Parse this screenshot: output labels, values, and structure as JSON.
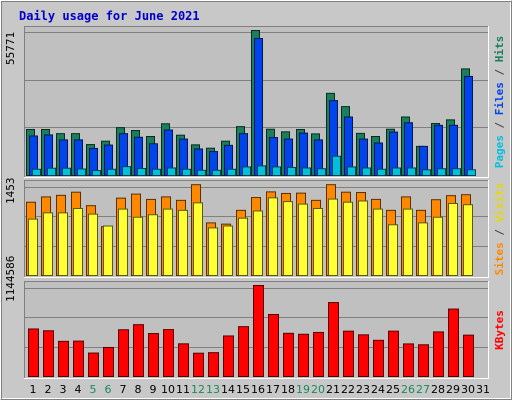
{
  "chart_data": {
    "type": "bar",
    "title": "Daily usage for June 2021",
    "categories": [
      "1",
      "2",
      "3",
      "4",
      "5",
      "6",
      "7",
      "8",
      "9",
      "10",
      "11",
      "12",
      "13",
      "14",
      "15",
      "16",
      "17",
      "18",
      "19",
      "20",
      "21",
      "22",
      "23",
      "24",
      "25",
      "26",
      "27",
      "28",
      "29",
      "30",
      "31"
    ],
    "weekend_days": [
      "5",
      "6",
      "12",
      "13",
      "19",
      "20",
      "26",
      "27"
    ],
    "panels": [
      {
        "name": "hits-files-pages",
        "ymax": 55771,
        "ymax_label": "55771",
        "axis_labels": [
          {
            "text": "Pages",
            "color": "#00c0e0"
          },
          {
            "text": " / ",
            "color": "#444444"
          },
          {
            "text": "Files",
            "color": "#0044ee"
          },
          {
            "text": " / ",
            "color": "#444444"
          },
          {
            "text": "Hits",
            "color": "#1a7f5a"
          }
        ],
        "series": [
          {
            "name": "Hits",
            "color": "#1a7f5a",
            "values": [
              17700,
              17700,
              16100,
              16100,
              11900,
              13200,
              18400,
              17300,
              15000,
              19900,
              15500,
              11800,
              10500,
              13200,
              18800,
              55771,
              17800,
              16800,
              17700,
              16000,
              31600,
              26500,
              16200,
              15000,
              17800,
              22500,
              11200,
              20000,
              21400,
              41000,
              0
            ]
          },
          {
            "name": "Files",
            "color": "#0044ee",
            "values": [
              15200,
              15600,
              13700,
              13700,
              10400,
              11700,
              16100,
              14700,
              12200,
              17500,
              14000,
              10200,
              9200,
              11600,
              16100,
              52700,
              14600,
              14000,
              16300,
              13700,
              28800,
              22500,
              14000,
              12500,
              16700,
              20300,
              11200,
              19300,
              19300,
              38100,
              0
            ]
          },
          {
            "name": "Pages",
            "color": "#00c0e0",
            "values": [
              2400,
              2800,
              2800,
              2500,
              1900,
              2400,
              3400,
              2700,
              2400,
              2900,
              2400,
              2000,
              2000,
              2400,
              3300,
              3700,
              3300,
              3100,
              2900,
              2600,
              7400,
              3300,
              2900,
              2400,
              2900,
              2900,
              2200,
              2600,
              2600,
              2200,
              0
            ]
          }
        ]
      },
      {
        "name": "visits-sites",
        "ymax": 1453,
        "ymax_label": "1453",
        "axis_labels": [
          {
            "text": "Sites",
            "color": "#ff8800"
          },
          {
            "text": " / ",
            "color": "#444444"
          },
          {
            "text": "Visits",
            "color": "#e8d800"
          }
        ],
        "series": [
          {
            "name": "Visits",
            "color": "#ff8800",
            "values": [
              1170,
              1255,
              1280,
              1330,
              1115,
              780,
              1235,
              1300,
              1215,
              1255,
              1200,
              1450,
              840,
              820,
              1040,
              1245,
              1335,
              1310,
              1315,
              1200,
              1450,
              1330,
              1325,
              1215,
              1040,
              1255,
              1040,
              1210,
              1275,
              1290,
              0
            ]
          },
          {
            "name": "Sites",
            "color": "#ffff33",
            "values": [
              900,
              1000,
              1000,
              1070,
              980,
              790,
              1060,
              930,
              970,
              1060,
              1040,
              1160,
              760,
              790,
              915,
              1030,
              1240,
              1180,
              1140,
              1070,
              1220,
              1170,
              1190,
              1060,
              810,
              1060,
              840,
              930,
              1150,
              1130,
              0
            ]
          }
        ]
      },
      {
        "name": "kbytes",
        "ymax": 1144586,
        "ymax_label": "1144586",
        "axis_labels": [
          {
            "text": "KBytes",
            "color": "#ff0000"
          }
        ],
        "series": [
          {
            "name": "KBytes",
            "color": "#ff0000",
            "values": [
              598000,
              575000,
              442000,
              445000,
              295000,
              365000,
              588000,
              652000,
              540000,
              590000,
              411000,
              293000,
              300000,
              510000,
              627000,
              1144586,
              780000,
              543000,
              531000,
              554000,
              930000,
              570000,
              524000,
              455000,
              570000,
              410000,
              399000,
              561000,
              848000,
              520000,
              0
            ]
          }
        ]
      }
    ]
  }
}
